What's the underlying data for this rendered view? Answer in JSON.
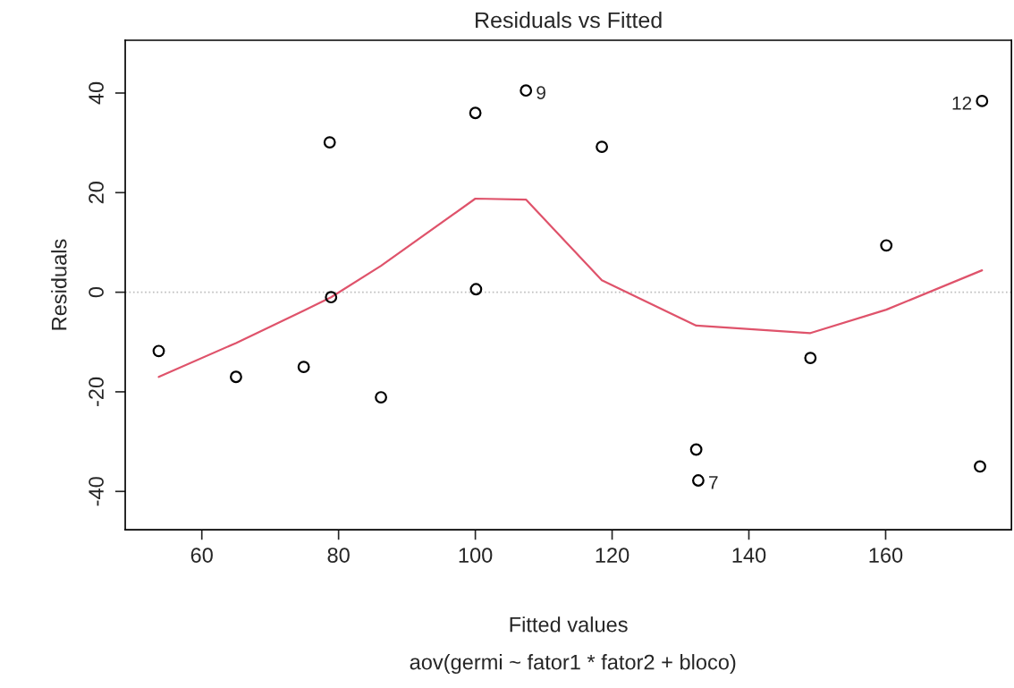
{
  "chart_data": {
    "type": "scatter",
    "title": "Residuals vs Fitted",
    "xlabel": "Fitted values",
    "ylabel": "Residuals",
    "xlim": [
      48.8,
      178.4
    ],
    "ylim": [
      -47.7,
      50.6
    ],
    "xticks": [
      60,
      80,
      100,
      120,
      140,
      160
    ],
    "yticks": [
      {
        "value": -40,
        "label": "-40"
      },
      {
        "value": -20,
        "label": "-20"
      },
      0,
      20,
      40
    ],
    "grid": false,
    "legend": false,
    "series": [
      {
        "marker": "circle",
        "color": "#000000",
        "x": [
          53.7,
          65.0,
          74.9,
          78.7,
          78.9,
          86.2,
          100.0,
          100.1,
          107.4,
          118.5,
          132.3,
          132.6,
          149.0,
          160.1,
          173.8,
          174.1
        ],
        "values": [
          -11.8,
          -17.0,
          -15.0,
          30.1,
          -1.0,
          -21.1,
          36.0,
          0.6,
          40.5,
          29.2,
          -31.6,
          -37.8,
          -13.2,
          9.4,
          -35.0,
          38.4
        ]
      },
      {
        "type": "line",
        "marker": "none",
        "line_style": "solid",
        "color": "#df536b",
        "x": [
          53.7,
          65.0,
          74.9,
          78.9,
          86.2,
          100.0,
          107.4,
          118.5,
          132.3,
          149.0,
          160.1,
          174.1
        ],
        "values": [
          -17.0,
          -10.2,
          -3.7,
          -1.0,
          5.3,
          18.8,
          18.6,
          2.4,
          -6.7,
          -8.2,
          -3.5,
          4.4
        ]
      }
    ],
    "ref_lines": [
      {
        "axis": "y",
        "value": 0,
        "color": "#bebebe",
        "line_style": "dotted"
      }
    ],
    "annotations": [
      {
        "text": "9",
        "x": 107.4,
        "y": 40.5
      },
      {
        "text": "7",
        "x": 132.6,
        "y": -37.8
      },
      {
        "text": "12",
        "x": 174.1,
        "y": 38.4
      },
      "aov(germi ~ fator1 * fator2 + bloco)"
    ]
  }
}
